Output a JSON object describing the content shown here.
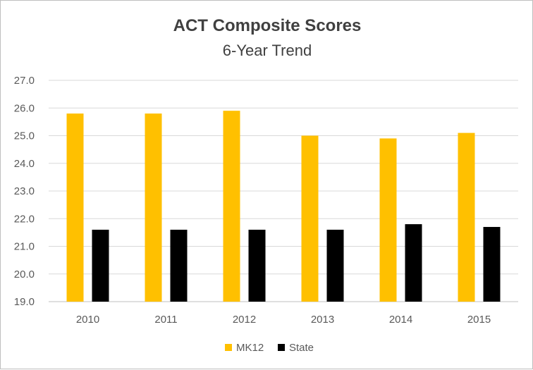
{
  "chart_data": {
    "type": "bar",
    "title": "ACT Composite Scores",
    "subtitle": "6-Year Trend",
    "xlabel": "",
    "ylabel": "",
    "categories": [
      "2010",
      "2011",
      "2012",
      "2013",
      "2014",
      "2015"
    ],
    "series": [
      {
        "name": "MK12",
        "color": "#FFC000",
        "values": [
          25.8,
          25.8,
          25.9,
          25.0,
          24.9,
          25.1
        ]
      },
      {
        "name": "State",
        "color": "#000000",
        "values": [
          21.6,
          21.6,
          21.6,
          21.6,
          21.8,
          21.7
        ]
      }
    ],
    "ylim": [
      19.0,
      27.0
    ],
    "yticks": [
      "19.0",
      "20.0",
      "21.0",
      "22.0",
      "23.0",
      "24.0",
      "25.0",
      "26.0",
      "27.0"
    ],
    "grid": true,
    "legend_position": "bottom",
    "gridline_color": "#d9d9d9"
  }
}
